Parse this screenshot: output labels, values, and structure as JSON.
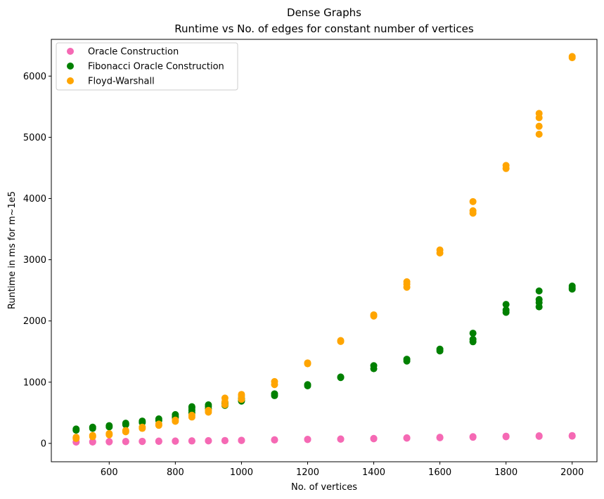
{
  "chart_data": {
    "type": "scatter",
    "title": "Dense Graphs",
    "subtitle": "Runtime vs No. of edges for constant number of vertices",
    "xlabel": "No. of vertices",
    "ylabel": "Runtime in ms for m~1e5",
    "xlim": [
      425,
      2075
    ],
    "ylim": [
      -300,
      6600
    ],
    "xticks": [
      600,
      800,
      1000,
      1200,
      1400,
      1600,
      1800,
      2000
    ],
    "yticks": [
      0,
      1000,
      2000,
      3000,
      4000,
      5000,
      6000
    ],
    "grid": false,
    "legend_position": "top-left",
    "series": [
      {
        "name": "Oracle Construction",
        "color": "#f569b4",
        "points": [
          [
            500,
            20
          ],
          [
            500,
            25
          ],
          [
            550,
            22
          ],
          [
            550,
            28
          ],
          [
            600,
            25
          ],
          [
            600,
            30
          ],
          [
            650,
            27
          ],
          [
            650,
            33
          ],
          [
            700,
            30
          ],
          [
            700,
            35
          ],
          [
            750,
            32
          ],
          [
            750,
            38
          ],
          [
            800,
            35
          ],
          [
            800,
            40
          ],
          [
            850,
            38
          ],
          [
            850,
            43
          ],
          [
            900,
            40
          ],
          [
            900,
            46
          ],
          [
            950,
            43
          ],
          [
            950,
            48
          ],
          [
            1000,
            46
          ],
          [
            1000,
            52
          ],
          [
            1100,
            55
          ],
          [
            1100,
            60
          ],
          [
            1200,
            62
          ],
          [
            1200,
            68
          ],
          [
            1300,
            68
          ],
          [
            1300,
            73
          ],
          [
            1400,
            75
          ],
          [
            1400,
            82
          ],
          [
            1500,
            85
          ],
          [
            1500,
            92
          ],
          [
            1600,
            92
          ],
          [
            1600,
            100
          ],
          [
            1700,
            100
          ],
          [
            1700,
            110
          ],
          [
            1800,
            108
          ],
          [
            1800,
            118
          ],
          [
            1900,
            115
          ],
          [
            1900,
            125
          ],
          [
            2000,
            118
          ],
          [
            2000,
            128
          ]
        ]
      },
      {
        "name": "Fibonacci Oracle Construction",
        "color": "#008000",
        "points": [
          [
            500,
            215
          ],
          [
            500,
            235
          ],
          [
            550,
            245
          ],
          [
            550,
            265
          ],
          [
            600,
            270
          ],
          [
            600,
            290
          ],
          [
            650,
            305
          ],
          [
            650,
            330
          ],
          [
            700,
            340
          ],
          [
            700,
            365
          ],
          [
            750,
            375
          ],
          [
            750,
            400
          ],
          [
            800,
            420
          ],
          [
            800,
            445
          ],
          [
            800,
            470
          ],
          [
            850,
            500
          ],
          [
            850,
            540
          ],
          [
            850,
            580
          ],
          [
            850,
            600
          ],
          [
            900,
            570
          ],
          [
            900,
            605
          ],
          [
            900,
            630
          ],
          [
            950,
            620
          ],
          [
            950,
            645
          ],
          [
            950,
            670
          ],
          [
            1000,
            690
          ],
          [
            1000,
            710
          ],
          [
            1000,
            730
          ],
          [
            1100,
            780
          ],
          [
            1100,
            810
          ],
          [
            1200,
            940
          ],
          [
            1200,
            960
          ],
          [
            1300,
            1075
          ],
          [
            1300,
            1085
          ],
          [
            1400,
            1220
          ],
          [
            1400,
            1270
          ],
          [
            1500,
            1345
          ],
          [
            1500,
            1375
          ],
          [
            1600,
            1510
          ],
          [
            1600,
            1540
          ],
          [
            1700,
            1660
          ],
          [
            1700,
            1700
          ],
          [
            1700,
            1800
          ],
          [
            1800,
            2140
          ],
          [
            1800,
            2180
          ],
          [
            1800,
            2270
          ],
          [
            1900,
            2230
          ],
          [
            1900,
            2300
          ],
          [
            1900,
            2350
          ],
          [
            1900,
            2490
          ],
          [
            2000,
            2520
          ],
          [
            2000,
            2540
          ],
          [
            2000,
            2570
          ]
        ]
      },
      {
        "name": "Floyd-Warshall",
        "color": "#ffa500",
        "points": [
          [
            500,
            80
          ],
          [
            500,
            100
          ],
          [
            550,
            110
          ],
          [
            550,
            130
          ],
          [
            600,
            140
          ],
          [
            600,
            160
          ],
          [
            650,
            190
          ],
          [
            650,
            210
          ],
          [
            700,
            245
          ],
          [
            700,
            265
          ],
          [
            750,
            295
          ],
          [
            750,
            315
          ],
          [
            800,
            360
          ],
          [
            800,
            380
          ],
          [
            850,
            430
          ],
          [
            850,
            460
          ],
          [
            900,
            510
          ],
          [
            900,
            540
          ],
          [
            950,
            630
          ],
          [
            950,
            680
          ],
          [
            950,
            740
          ],
          [
            1000,
            720
          ],
          [
            1000,
            770
          ],
          [
            1000,
            800
          ],
          [
            1100,
            960
          ],
          [
            1100,
            1010
          ],
          [
            1200,
            1300
          ],
          [
            1200,
            1315
          ],
          [
            1300,
            1665
          ],
          [
            1300,
            1680
          ],
          [
            1400,
            2080
          ],
          [
            1400,
            2100
          ],
          [
            1500,
            2550
          ],
          [
            1500,
            2600
          ],
          [
            1500,
            2640
          ],
          [
            1600,
            3110
          ],
          [
            1600,
            3160
          ],
          [
            1700,
            3760
          ],
          [
            1700,
            3800
          ],
          [
            1700,
            3950
          ],
          [
            1800,
            4490
          ],
          [
            1800,
            4540
          ],
          [
            1900,
            5050
          ],
          [
            1900,
            5180
          ],
          [
            1900,
            5320
          ],
          [
            1900,
            5390
          ],
          [
            2000,
            6300
          ],
          [
            2000,
            6320
          ]
        ]
      }
    ]
  }
}
